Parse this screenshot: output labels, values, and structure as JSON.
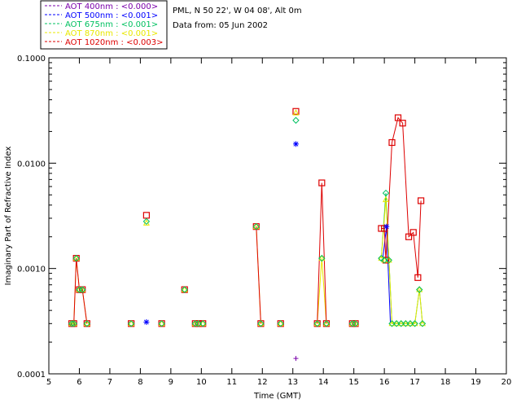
{
  "header": {
    "site": "PML, N 50 22', W 04 08', Alt 0m",
    "date": "Data from: 05 Jun 2002"
  },
  "chart_data": {
    "type": "scatter",
    "title": "",
    "xlabel": "Time (GMT)",
    "ylabel": "Imaginary Part of Refractive Index",
    "xlim": [
      5,
      20
    ],
    "ylim": [
      0.0001,
      0.1
    ],
    "yscale": "log",
    "xticks": [
      "5",
      "6",
      "7",
      "8",
      "9",
      "10",
      "11",
      "12",
      "13",
      "14",
      "15",
      "16",
      "17",
      "18",
      "19",
      "20"
    ],
    "yticks": [
      "0.0001",
      "0.0010",
      "0.0100",
      "0.1000"
    ],
    "legend_position": "top-left",
    "series": [
      {
        "name": "AOT  400nm : <0.000>",
        "color": "#7a00aa",
        "marker": "plus",
        "points": [
          [
            13.1,
            0.00014
          ]
        ],
        "segments": []
      },
      {
        "name": "AOT  500nm : <0.001>",
        "color": "#0000ff",
        "marker": "asterisk",
        "points": [
          [
            8.2,
            0.00031
          ],
          [
            13.1,
            0.0152
          ],
          [
            16.07,
            0.0025
          ]
        ],
        "segments": [
          [
            [
              15.95,
              0.00125
            ],
            [
              16.07,
              0.0025
            ],
            [
              16.2,
              0.0003
            ]
          ]
        ]
      },
      {
        "name": "AOT  675nm : <0.001>",
        "color": "#00c060",
        "marker": "diamond",
        "points": [
          [
            5.75,
            0.0003
          ],
          [
            5.82,
            0.0003
          ],
          [
            5.9,
            0.00125
          ],
          [
            6.0,
            0.00063
          ],
          [
            6.1,
            0.00063
          ],
          [
            6.25,
            0.0003
          ],
          [
            7.7,
            0.0003
          ],
          [
            8.2,
            0.0028
          ],
          [
            8.7,
            0.0003
          ],
          [
            9.45,
            0.00063
          ],
          [
            9.8,
            0.0003
          ],
          [
            9.9,
            0.0003
          ],
          [
            10.05,
            0.0003
          ],
          [
            11.8,
            0.0025
          ],
          [
            11.95,
            0.0003
          ],
          [
            12.6,
            0.0003
          ],
          [
            13.1,
            0.0255
          ],
          [
            13.8,
            0.0003
          ],
          [
            13.95,
            0.00125
          ],
          [
            14.1,
            0.0003
          ],
          [
            14.95,
            0.0003
          ],
          [
            15.05,
            0.0003
          ],
          [
            15.9,
            0.00125
          ],
          [
            16.0,
            0.0012
          ],
          [
            16.05,
            0.0052
          ],
          [
            16.15,
            0.0012
          ],
          [
            16.25,
            0.0003
          ],
          [
            16.4,
            0.0003
          ],
          [
            16.55,
            0.0003
          ],
          [
            16.7,
            0.0003
          ],
          [
            16.85,
            0.0003
          ],
          [
            17.0,
            0.0003
          ],
          [
            17.15,
            0.00063
          ],
          [
            17.25,
            0.0003
          ]
        ],
        "segments": [
          [
            [
              15.9,
              0.00125
            ],
            [
              16.05,
              0.0052
            ],
            [
              16.15,
              0.0012
            ],
            [
              16.25,
              0.0003
            ],
            [
              16.4,
              0.0003
            ],
            [
              16.55,
              0.0003
            ],
            [
              16.7,
              0.0003
            ],
            [
              16.85,
              0.0003
            ],
            [
              17.0,
              0.0003
            ],
            [
              17.15,
              0.00063
            ],
            [
              17.25,
              0.0003
            ]
          ]
        ]
      },
      {
        "name": "AOT  870nm : <0.001>",
        "color": "#e8e800",
        "marker": "triangle",
        "points": [
          [
            5.75,
            0.0003
          ],
          [
            5.82,
            0.0003
          ],
          [
            5.9,
            0.00125
          ],
          [
            6.0,
            0.00063
          ],
          [
            6.1,
            0.00063
          ],
          [
            6.25,
            0.0003
          ],
          [
            7.7,
            0.0003
          ],
          [
            8.2,
            0.0027
          ],
          [
            8.7,
            0.0003
          ],
          [
            9.45,
            0.00063
          ],
          [
            9.8,
            0.0003
          ],
          [
            9.9,
            0.0003
          ],
          [
            10.05,
            0.0003
          ],
          [
            11.8,
            0.0025
          ],
          [
            11.95,
            0.0003
          ],
          [
            12.6,
            0.0003
          ],
          [
            13.1,
            0.03
          ],
          [
            13.8,
            0.0003
          ],
          [
            13.95,
            0.00125
          ],
          [
            14.1,
            0.0003
          ],
          [
            14.95,
            0.0003
          ],
          [
            15.05,
            0.0003
          ],
          [
            15.9,
            0.00125
          ],
          [
            16.0,
            0.0012
          ],
          [
            16.05,
            0.0045
          ],
          [
            16.15,
            0.0012
          ],
          [
            16.25,
            0.0003
          ],
          [
            16.4,
            0.0003
          ],
          [
            16.55,
            0.0003
          ],
          [
            16.7,
            0.0003
          ],
          [
            16.85,
            0.0003
          ],
          [
            17.0,
            0.0003
          ],
          [
            17.15,
            0.00063
          ],
          [
            17.25,
            0.0003
          ]
        ],
        "segments": [
          [
            [
              5.75,
              0.0003
            ],
            [
              5.82,
              0.0003
            ],
            [
              5.9,
              0.00125
            ],
            [
              6.0,
              0.00063
            ],
            [
              6.1,
              0.00063
            ],
            [
              6.25,
              0.0003
            ]
          ],
          [
            [
              11.8,
              0.0025
            ],
            [
              11.95,
              0.0003
            ]
          ],
          [
            [
              13.8,
              0.0003
            ],
            [
              13.95,
              0.00125
            ],
            [
              14.1,
              0.0003
            ]
          ],
          [
            [
              15.9,
              0.00125
            ],
            [
              16.05,
              0.0045
            ],
            [
              16.15,
              0.0012
            ],
            [
              16.25,
              0.0003
            ],
            [
              16.4,
              0.0003
            ],
            [
              16.55,
              0.0003
            ],
            [
              16.7,
              0.0003
            ],
            [
              16.85,
              0.0003
            ],
            [
              17.0,
              0.0003
            ],
            [
              17.15,
              0.00063
            ],
            [
              17.25,
              0.0003
            ]
          ]
        ]
      },
      {
        "name": "AOT 1020nm : <0.003>",
        "color": "#dd0000",
        "marker": "square",
        "points": [
          [
            5.75,
            0.0003
          ],
          [
            5.82,
            0.0003
          ],
          [
            5.9,
            0.00125
          ],
          [
            6.0,
            0.00063
          ],
          [
            6.1,
            0.00063
          ],
          [
            6.25,
            0.0003
          ],
          [
            7.7,
            0.0003
          ],
          [
            8.2,
            0.0032
          ],
          [
            8.7,
            0.0003
          ],
          [
            9.45,
            0.00063
          ],
          [
            9.8,
            0.0003
          ],
          [
            9.9,
            0.0003
          ],
          [
            10.05,
            0.0003
          ],
          [
            11.8,
            0.0025
          ],
          [
            11.95,
            0.0003
          ],
          [
            12.6,
            0.0003
          ],
          [
            13.1,
            0.031
          ],
          [
            13.8,
            0.0003
          ],
          [
            13.95,
            0.0065
          ],
          [
            14.1,
            0.0003
          ],
          [
            14.95,
            0.0003
          ],
          [
            15.05,
            0.0003
          ],
          [
            15.9,
            0.0024
          ],
          [
            16.0,
            0.0024
          ],
          [
            16.05,
            0.0012
          ],
          [
            16.25,
            0.0157
          ],
          [
            16.45,
            0.027
          ],
          [
            16.6,
            0.024
          ],
          [
            16.8,
            0.002
          ],
          [
            16.95,
            0.0022
          ],
          [
            17.1,
            0.00082
          ],
          [
            17.2,
            0.0044
          ]
        ],
        "segments": [
          [
            [
              5.75,
              0.0003
            ],
            [
              5.82,
              0.0003
            ],
            [
              5.9,
              0.00125
            ],
            [
              6.0,
              0.00063
            ],
            [
              6.1,
              0.00063
            ],
            [
              6.25,
              0.0003
            ]
          ],
          [
            [
              11.8,
              0.0025
            ],
            [
              11.95,
              0.0003
            ]
          ],
          [
            [
              13.8,
              0.0003
            ],
            [
              13.95,
              0.0065
            ],
            [
              14.1,
              0.0003
            ]
          ],
          [
            [
              15.9,
              0.0024
            ],
            [
              16.0,
              0.0024
            ],
            [
              16.05,
              0.0012
            ],
            [
              16.25,
              0.0157
            ],
            [
              16.45,
              0.027
            ],
            [
              16.6,
              0.024
            ],
            [
              16.8,
              0.002
            ],
            [
              16.95,
              0.0022
            ],
            [
              17.1,
              0.00082
            ],
            [
              17.2,
              0.0044
            ]
          ]
        ]
      }
    ]
  }
}
